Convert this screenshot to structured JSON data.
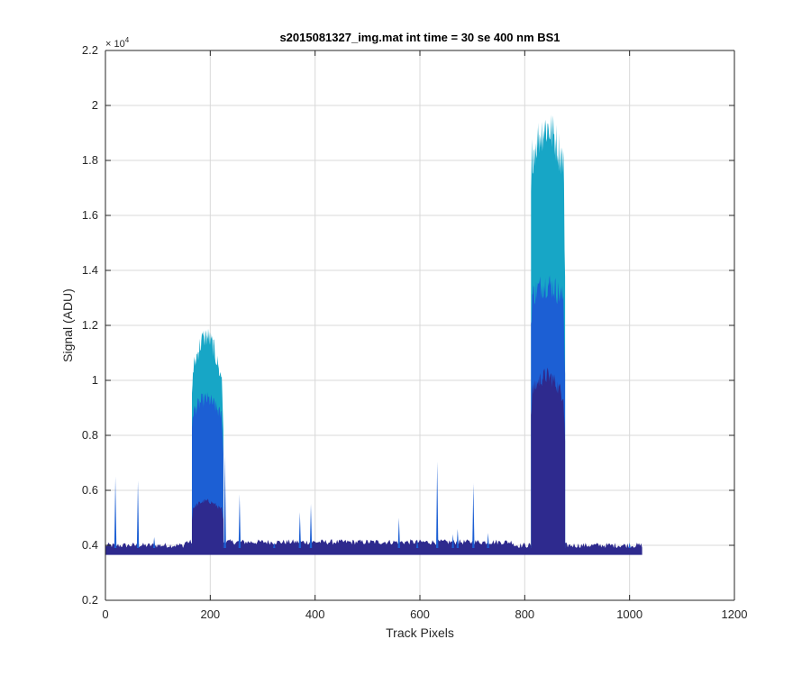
{
  "chart_data": {
    "type": "area",
    "title": "s2015081327_img.mat int time = 30 se  400 nm BS1",
    "xlabel": "Track Pixels",
    "ylabel": "Signal (ADU)",
    "xlim": [
      0,
      1200
    ],
    "ylim": [
      0.2,
      2.2
    ],
    "y_multiplier_label": "× 10",
    "y_multiplier_exp": "4",
    "xticks": [
      "0",
      "200",
      "400",
      "600",
      "800",
      "1000",
      "1200"
    ],
    "yticks": [
      "0.2",
      "0.4",
      "0.6",
      "0.8",
      "1",
      "1.2",
      "1.4",
      "1.6",
      "1.8",
      "2",
      "2.2"
    ],
    "grid": true,
    "baseline": 0.39,
    "x_data_range": [
      0,
      1024
    ],
    "colors": {
      "light": "#17a6c6",
      "mid": "#1c5fd4",
      "dark": "#2e2a8e",
      "grid": "#d9d9d9",
      "axis": "#262626"
    },
    "peaks": [
      {
        "x_start": 165,
        "x_end": 225,
        "series": [
          {
            "name": "",
            "max": 1.2,
            "level": 1.05
          },
          {
            "name": "",
            "max": 0.96,
            "level": 0.9
          },
          {
            "name": "",
            "max": 0.57,
            "level": 0.54
          }
        ]
      },
      {
        "x_start": 812,
        "x_end": 877,
        "series": [
          {
            "name": "",
            "max": 2.0,
            "level": 1.88
          },
          {
            "name": "",
            "max": 1.4,
            "level": 1.35
          },
          {
            "name": "",
            "max": 1.05,
            "level": 0.98
          }
        ]
      }
    ],
    "spikes": [
      {
        "x": 19,
        "y": 0.65
      },
      {
        "x": 62,
        "y": 0.635
      },
      {
        "x": 93,
        "y": 0.43
      },
      {
        "x": 228,
        "y": 0.73
      },
      {
        "x": 256,
        "y": 0.585
      },
      {
        "x": 322,
        "y": 0.41
      },
      {
        "x": 371,
        "y": 0.52
      },
      {
        "x": 392,
        "y": 0.55
      },
      {
        "x": 560,
        "y": 0.5
      },
      {
        "x": 595,
        "y": 0.42
      },
      {
        "x": 633,
        "y": 0.705
      },
      {
        "x": 663,
        "y": 0.44
      },
      {
        "x": 672,
        "y": 0.46
      },
      {
        "x": 702,
        "y": 0.625
      },
      {
        "x": 730,
        "y": 0.445
      },
      {
        "x": 1000,
        "y": 0.41
      }
    ]
  }
}
